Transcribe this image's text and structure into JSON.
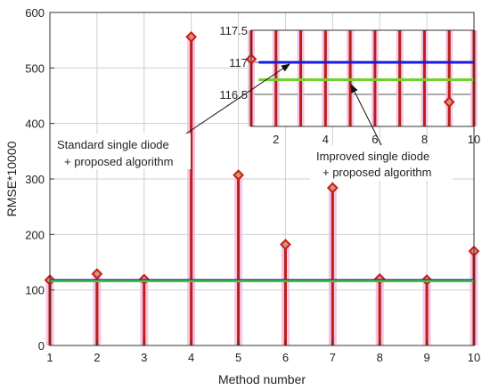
{
  "chart_data": [
    {
      "type": "stem",
      "xlabel": "Method number",
      "ylabel": "RMSE*10000",
      "xlim": [
        1,
        10
      ],
      "ylim": [
        0,
        600
      ],
      "x_ticks": [
        "1",
        "2",
        "3",
        "4",
        "5",
        "6",
        "7",
        "8",
        "9",
        "10"
      ],
      "y_ticks": [
        "0",
        "100",
        "200",
        "300",
        "400",
        "500",
        "600"
      ],
      "grid": true,
      "x": [
        1,
        2,
        3,
        4,
        5,
        6,
        7,
        8,
        9,
        10
      ],
      "values": [
        118,
        129,
        119,
        556,
        307,
        182,
        284,
        120,
        118,
        170
      ],
      "reference_lines": [
        {
          "y": 117.0,
          "color": "#1a1adb"
        },
        {
          "y": 116.7,
          "color": "#44cc22"
        }
      ]
    },
    {
      "type": "stem",
      "inset": true,
      "xlim": [
        1,
        10
      ],
      "ylim": [
        116,
        117.5
      ],
      "x_ticks": [
        "2",
        "4",
        "6",
        "8",
        "10"
      ],
      "y_ticks": [
        "116.5",
        "117",
        "117.5"
      ],
      "grid": true,
      "visible_markers": [
        {
          "x": 1,
          "y": 117.05
        },
        {
          "x": 9,
          "y": 116.38
        }
      ],
      "reference_lines": [
        {
          "y": 117.0,
          "color": "#1a1adb",
          "x_range": [
            1.3,
            10
          ]
        },
        {
          "y": 116.73,
          "color": "#6fd22a",
          "x_range": [
            1.3,
            10
          ]
        }
      ]
    }
  ],
  "annotations": {
    "left_line1": "Standard single diode",
    "left_line2": "+ proposed algorithm",
    "right_line1": "Improved single diode",
    "right_line2": "+ proposed algorithm"
  },
  "colors": {
    "stem": "#b8201a",
    "stem_halo": "#f4b6dc",
    "marker": "#d21818",
    "marker_fill": "#c49a7a",
    "blue_line": "#1a1adb",
    "green_line": "#44cc22"
  }
}
